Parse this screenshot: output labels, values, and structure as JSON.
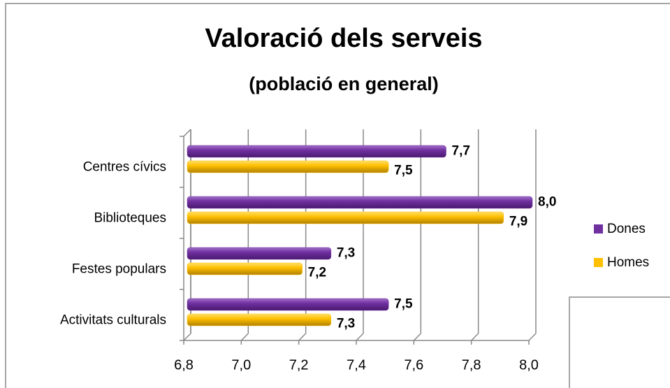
{
  "chart_data": {
    "type": "bar",
    "orientation": "horizontal",
    "title": "Valoració dels serveis",
    "subtitle": "(població en general)",
    "categories": [
      "Centres cívics",
      "Biblioteques",
      "Festes populars",
      "Activitats culturals"
    ],
    "series": [
      {
        "name": "Dones",
        "color": "#7030a0",
        "values": [
          7.7,
          8.0,
          7.3,
          7.5
        ],
        "value_labels": [
          "7,7",
          "8,0",
          "7,3",
          "7,5"
        ]
      },
      {
        "name": "Homes",
        "color": "#ffc000",
        "values": [
          7.5,
          7.9,
          7.2,
          7.3
        ],
        "value_labels": [
          "7,5",
          "7,9",
          "7,2",
          "7,3"
        ]
      }
    ],
    "xlim": [
      6.8,
      8.0
    ],
    "xticks": [
      {
        "value": 6.8,
        "label": "6,8"
      },
      {
        "value": 7.0,
        "label": "7,0"
      },
      {
        "value": 7.2,
        "label": "7,2"
      },
      {
        "value": 7.4,
        "label": "7,4"
      },
      {
        "value": 7.6,
        "label": "7,6"
      },
      {
        "value": 7.8,
        "label": "7,8"
      },
      {
        "value": 8.0,
        "label": "8,0"
      }
    ],
    "grid": true,
    "legend": "right"
  }
}
